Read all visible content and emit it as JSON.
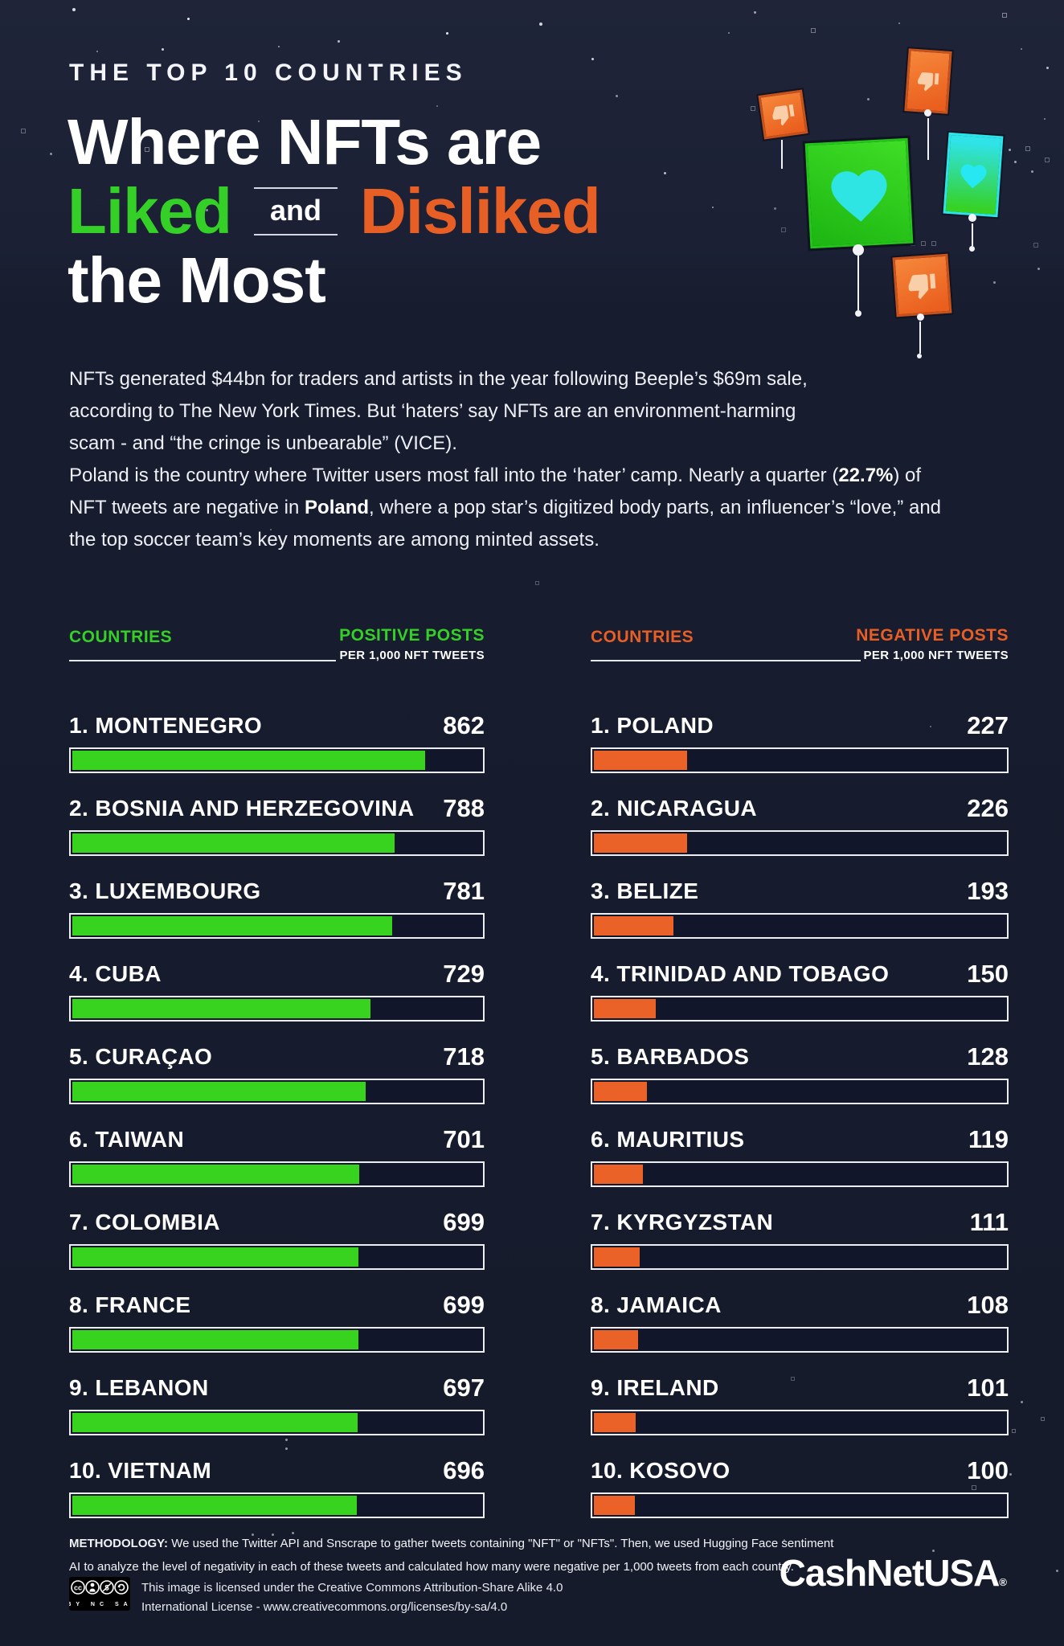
{
  "header": {
    "kicker": "THE TOP 10 COUNTRIES",
    "title_line1": "Where NFTs are",
    "title_liked": "Liked",
    "title_and": "and",
    "title_disliked": "Disliked",
    "title_line3": "the Most"
  },
  "intro": {
    "p1": {
      "lines": [
        "NFTs generated $44bn for traders and artists in the year following Beeple’s $69m sale,",
        "according to The New York Times. But ‘haters’ say NFTs are an environment-harming",
        "scam - and “the cringe is unbearable” (VICE)."
      ]
    },
    "p2": {
      "l1a": "Poland is the country where Twitter users most fall into the ‘hater’ camp. Nearly a quarter (",
      "l1b": "22.7%",
      "l1c": ") of",
      "l2a": "NFT tweets are negative in ",
      "l2b": "Poland",
      "l2c": ", where a pop star’s digitized body parts, an influencer’s “love,” and",
      "l3": "the top soccer team’s key moments are among minted assets."
    }
  },
  "lists": {
    "positive": {
      "countries_label": "COUNTRIES",
      "metric_label": "POSITIVE POSTS",
      "metric_sub": "PER 1,000 NFT TWEETS",
      "rows": [
        {
          "label": "1. MONTENEGRO",
          "value": "862"
        },
        {
          "label": "2. BOSNIA AND HERZEGOVINA",
          "value": "788"
        },
        {
          "label": "3. LUXEMBOURG",
          "value": "781"
        },
        {
          "label": "4. CUBA",
          "value": "729"
        },
        {
          "label": "5. CURAÇAO",
          "value": "718"
        },
        {
          "label": "6. TAIWAN",
          "value": "701"
        },
        {
          "label": "7. COLOMBIA",
          "value": "699"
        },
        {
          "label": "8. FRANCE",
          "value": "699"
        },
        {
          "label": "9. LEBANON",
          "value": "697"
        },
        {
          "label": "10. VIETNAM",
          "value": "696"
        }
      ]
    },
    "negative": {
      "countries_label": "COUNTRIES",
      "metric_label": "NEGATIVE POSTS",
      "metric_sub": "PER 1,000 NFT TWEETS",
      "rows": [
        {
          "label": "1. POLAND",
          "value": "227"
        },
        {
          "label": "2. NICARAGUA",
          "value": "226"
        },
        {
          "label": "3. BELIZE",
          "value": "193"
        },
        {
          "label": "4. TRINIDAD AND TOBAGO",
          "value": "150"
        },
        {
          "label": "5. BARBADOS",
          "value": "128"
        },
        {
          "label": "6. MAURITIUS",
          "value": "119"
        },
        {
          "label": "7. KYRGYZSTAN",
          "value": "111"
        },
        {
          "label": "8. JAMAICA",
          "value": "108"
        },
        {
          "label": "9. IRELAND",
          "value": "101"
        },
        {
          "label": "10. KOSOVO",
          "value": "100"
        }
      ]
    }
  },
  "chart_data": [
    {
      "type": "bar",
      "orientation": "horizontal",
      "title": "Positive posts per 1,000 NFT tweets",
      "categories": [
        "Montenegro",
        "Bosnia and Herzegovina",
        "Luxembourg",
        "Cuba",
        "Curaçao",
        "Taiwan",
        "Colombia",
        "France",
        "Lebanon",
        "Vietnam"
      ],
      "values": [
        862,
        788,
        781,
        729,
        718,
        701,
        699,
        699,
        697,
        696
      ],
      "xlim": [
        0,
        1000
      ],
      "bar_color": "#38D31F",
      "grid": false,
      "legend": "none"
    },
    {
      "type": "bar",
      "orientation": "horizontal",
      "title": "Negative posts per 1,000 NFT tweets",
      "categories": [
        "Poland",
        "Nicaragua",
        "Belize",
        "Trinidad and Tobago",
        "Barbados",
        "Mauritius",
        "Kyrgyzstan",
        "Jamaica",
        "Ireland",
        "Kosovo"
      ],
      "values": [
        227,
        226,
        193,
        150,
        128,
        119,
        111,
        108,
        101,
        100
      ],
      "xlim": [
        0,
        1000
      ],
      "bar_color": "#EA6227",
      "grid": false,
      "legend": "none"
    }
  ],
  "footer": {
    "methodology_label": "METHODOLOGY:",
    "methodology_line1": " We used the Twitter API and Snscrape to gather tweets containing \"NFT\" or \"NFTs\". Then, we used Hugging Face sentiment",
    "methodology_line2": "AI to analyze the level of negativity in each of these tweets and calculated how many were negative per 1,000 tweets from each country.",
    "license_line1": "This image is licensed under the Creative Commons Attribution-Share Alike 4.0",
    "license_line2": "International License - www.creativecommons.org/licenses/by-sa/4.0",
    "cc_badge_text": "BY NC SA",
    "brand": "CashNetUSA",
    "brand_reg": "®"
  },
  "colors": {
    "background": "#161B2C",
    "green": "#35D027",
    "bar_green": "#38D31F",
    "orange": "#E85F25",
    "bar_orange": "#EA6227",
    "heart_cyan": "#2FE5E4",
    "bar_border": "#EDEEF2",
    "bar_track": "#11162A"
  }
}
